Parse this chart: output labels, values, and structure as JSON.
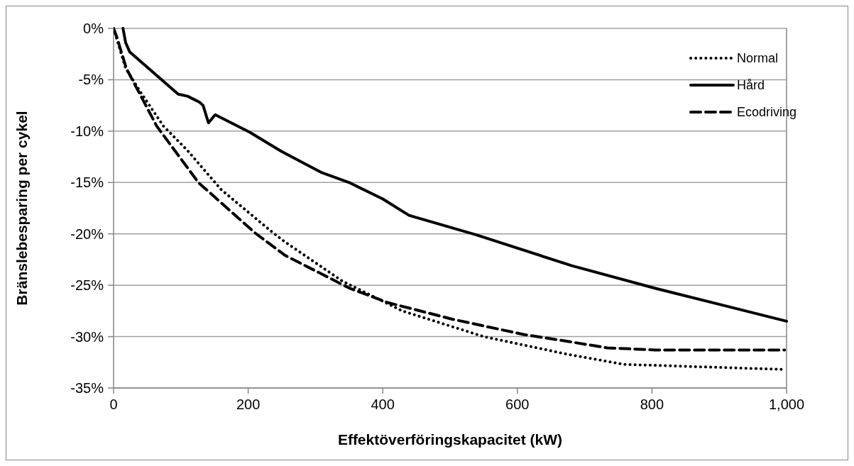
{
  "chart_data": {
    "type": "line",
    "xlabel": "Effektöverföringskapacitet (kW)",
    "ylabel": "Bränslebesparing per cykel",
    "xlim": [
      0,
      1000
    ],
    "xticks": [
      0,
      200,
      400,
      600,
      800,
      {
        "value": 1000,
        "label": "1,000"
      }
    ],
    "ylim": [
      -35,
      0
    ],
    "yticks": [
      {
        "value": -35,
        "label": "-35%"
      },
      {
        "value": -30,
        "label": "-30%"
      },
      {
        "value": -25,
        "label": "-25%"
      },
      {
        "value": -20,
        "label": "-20%"
      },
      {
        "value": -15,
        "label": "-15%"
      },
      {
        "value": -10,
        "label": "-10%"
      },
      {
        "value": -5,
        "label": "-5%"
      },
      {
        "value": 0,
        "label": "0%"
      }
    ],
    "grid": "y",
    "legend": "top right",
    "marker": "none",
    "series": [
      {
        "name": "Normal",
        "color": "#000000",
        "line_style": "dotted",
        "x": [
          0,
          18,
          40,
          74,
          110,
          160,
          237,
          255,
          340,
          429,
          550,
          673,
          758,
          998
        ],
        "values": [
          0,
          -3.9,
          -6.2,
          -9.5,
          -11.9,
          -15.7,
          -19.9,
          -20.8,
          -24.6,
          -27.5,
          -30.0,
          -31.7,
          -32.7,
          -33.2
        ]
      },
      {
        "name": "Hård",
        "color": "#000000",
        "line_style": "solid",
        "x": [
          14,
          18,
          24,
          96,
          110,
          128,
          133,
          141,
          151,
          202,
          250,
          308,
          350,
          400,
          439,
          539,
          681,
          805,
          1000
        ],
        "values": [
          0,
          -1.4,
          -2.3,
          -6.4,
          -6.6,
          -7.2,
          -7.5,
          -9.2,
          -8.4,
          -10.1,
          -12.0,
          -14.0,
          -15.0,
          -16.6,
          -18.2,
          -20.1,
          -23.1,
          -25.3,
          -28.5
        ]
      },
      {
        "name": "Ecodriving",
        "color": "#000000",
        "line_style": "dashed",
        "x": [
          0,
          5,
          19,
          64,
          126,
          210,
          255,
          351,
          408,
          503,
          610,
          678,
          734,
          805,
          997
        ],
        "values": [
          0,
          -0.9,
          -3.9,
          -9.5,
          -15.0,
          -19.9,
          -22.1,
          -25.3,
          -26.7,
          -28.3,
          -29.8,
          -30.5,
          -31.1,
          -31.3,
          -31.3
        ]
      }
    ]
  }
}
